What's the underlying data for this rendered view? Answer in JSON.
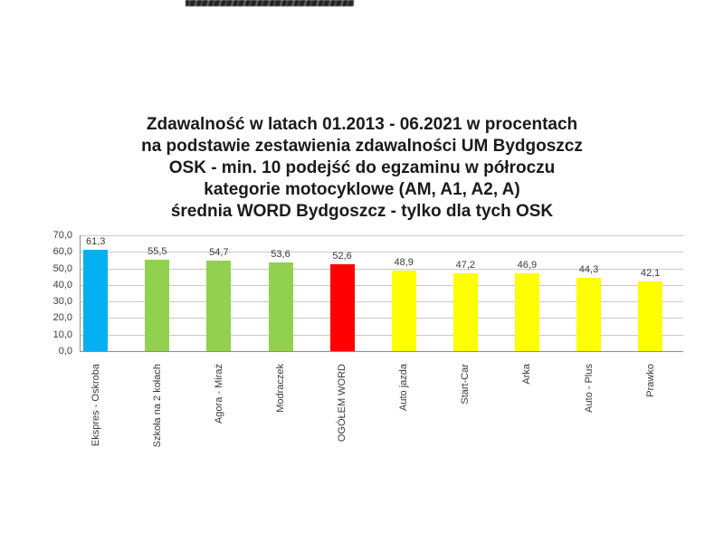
{
  "title": {
    "lines": [
      "Zdawalność w latach 01.2013 - 06.2021 w procentach",
      "na podstawie zestawienia zdawalności UM Bydgoszcz",
      "OSK - min. 10 podejść do egzaminu w półroczu",
      "kategorie motocyklowe (AM, A1, A2, A)",
      "średnia WORD Bydgoszcz - tylko dla tych OSK"
    ]
  },
  "chart_data": {
    "type": "bar",
    "title": "Zdawalność w latach 01.2013 - 06.2021 w procentach na podstawie zestawienia zdawalności UM Bydgoszcz; OSK - min. 10 podejść do egzaminu w półroczu; kategorie motocyklowe (AM, A1, A2, A); średnia WORD Bydgoszcz - tylko dla tych OSK",
    "categories": [
      "Ekspres - Oskroba",
      "Szkoła na 2 kołach",
      "Agora - Miraż",
      "Modraczek",
      "OGÓŁEM WORD",
      "Auto jazda",
      "Start-Car",
      "Arka",
      "Auto - Plus",
      "Prawko"
    ],
    "values": [
      61.3,
      55.5,
      54.7,
      53.6,
      52.6,
      48.9,
      47.2,
      46.9,
      44.3,
      42.1
    ],
    "value_labels": [
      "61,3",
      "55,5",
      "54,7",
      "53,6",
      "52,6",
      "48,9",
      "47,2",
      "46,9",
      "44,3",
      "42,1"
    ],
    "bar_colors": [
      "#00B0F0",
      "#92D050",
      "#92D050",
      "#92D050",
      "#FF0000",
      "#FFFF00",
      "#FFFF00",
      "#FFFF00",
      "#FFFF00",
      "#FFFF00"
    ],
    "yticks": [
      "0,0",
      "10,0",
      "20,0",
      "30,0",
      "40,0",
      "50,0",
      "60,0",
      "70,0"
    ],
    "ylim": [
      0,
      70
    ],
    "ytick_step": 10,
    "xlabel": "",
    "ylabel": "",
    "grid": true,
    "legend": false,
    "colors": {
      "grid": "#C9C9C9",
      "axis": "#8E8E8E",
      "value_label_text": "#3a3a3a",
      "title_text": "#1a1a1a"
    }
  }
}
